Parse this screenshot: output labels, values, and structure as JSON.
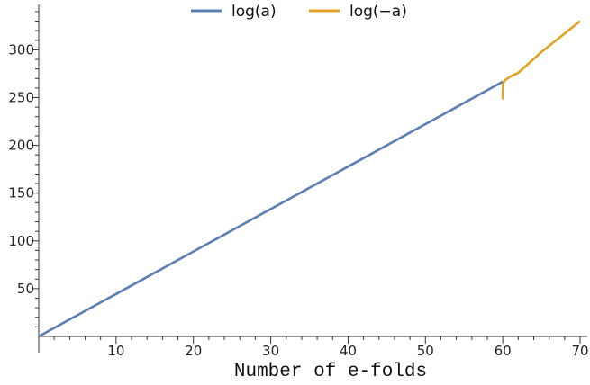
{
  "chart_data": {
    "type": "line",
    "title": "",
    "xlabel": "Number of e-folds",
    "ylabel": "",
    "xlim": [
      0,
      70
    ],
    "ylim": [
      0,
      340
    ],
    "x_ticks": [
      10,
      20,
      30,
      40,
      50,
      60,
      70
    ],
    "y_ticks": [
      50,
      100,
      150,
      200,
      250,
      300
    ],
    "grid": false,
    "legend_position": "top-center",
    "series": [
      {
        "name": "log(a)",
        "color": "#5b7fb4",
        "points": [
          [
            0,
            0
          ],
          [
            10,
            44.4
          ],
          [
            20,
            88.9
          ],
          [
            30,
            133.3
          ],
          [
            40,
            177.8
          ],
          [
            50,
            222.2
          ],
          [
            60,
            266.7
          ]
        ]
      },
      {
        "name": "log(−a)",
        "color": "#e3a126",
        "points": [
          [
            60,
            248
          ],
          [
            60.02,
            259
          ],
          [
            60.05,
            264
          ],
          [
            60.12,
            266
          ],
          [
            60.25,
            268
          ],
          [
            61,
            272
          ],
          [
            62,
            275.9
          ],
          [
            65,
            297.6
          ],
          [
            70,
            330
          ]
        ]
      }
    ]
  }
}
